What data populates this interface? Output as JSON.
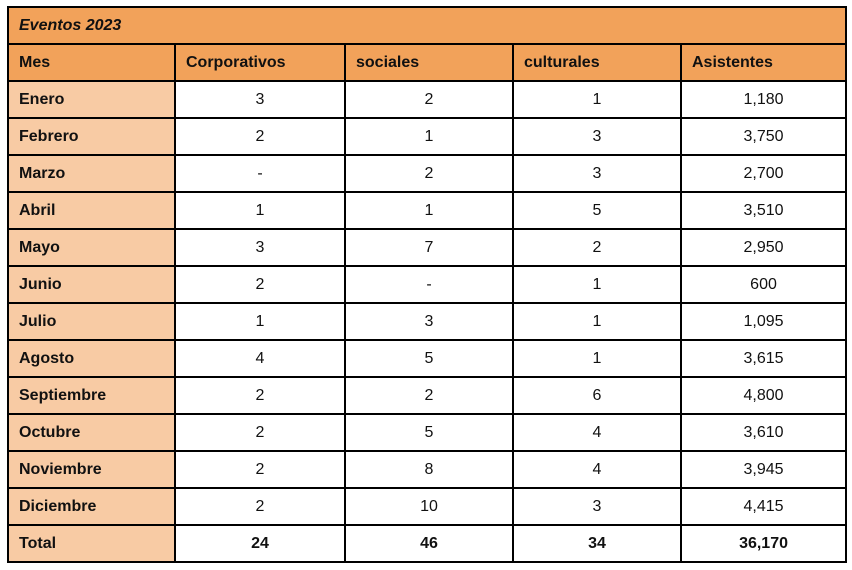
{
  "title": "Eventos 2023",
  "table": {
    "columns": [
      "Mes",
      "Corporativos",
      "sociales",
      "culturales",
      "Asistentes"
    ],
    "rows": [
      {
        "mes": "Enero",
        "values": [
          "3",
          "2",
          "1",
          "1,180"
        ]
      },
      {
        "mes": "Febrero",
        "values": [
          "2",
          "1",
          "3",
          "3,750"
        ]
      },
      {
        "mes": "Marzo",
        "values": [
          "-",
          "2",
          "3",
          "2,700"
        ]
      },
      {
        "mes": "Abril",
        "values": [
          "1",
          "1",
          "5",
          "3,510"
        ]
      },
      {
        "mes": "Mayo",
        "values": [
          "3",
          "7",
          "2",
          "2,950"
        ]
      },
      {
        "mes": "Junio",
        "values": [
          "2",
          "-",
          "1",
          "600"
        ]
      },
      {
        "mes": "Julio",
        "values": [
          "1",
          "3",
          "1",
          "1,095"
        ]
      },
      {
        "mes": "Agosto",
        "values": [
          "4",
          "5",
          "1",
          "3,615"
        ]
      },
      {
        "mes": "Septiembre",
        "values": [
          "2",
          "2",
          "6",
          "4,800"
        ]
      },
      {
        "mes": "Octubre",
        "values": [
          "2",
          "5",
          "4",
          "3,610"
        ]
      },
      {
        "mes": "Noviembre",
        "values": [
          "2",
          "8",
          "4",
          "3,945"
        ]
      },
      {
        "mes": "Diciembre",
        "values": [
          "2",
          "10",
          "3",
          "4,415"
        ]
      }
    ],
    "total": {
      "label": "Total",
      "values": [
        "24",
        "46",
        "34",
        "36,170"
      ]
    }
  },
  "colors": {
    "header_bg": "#F2A25A",
    "label_bg": "#F8CBA4",
    "border": "#000000",
    "text": "#111111"
  },
  "chart_data": {
    "type": "table",
    "title": "Eventos 2023",
    "columns": [
      "Mes",
      "Corporativos",
      "sociales",
      "culturales",
      "Asistentes"
    ],
    "rows": [
      [
        "Enero",
        3,
        2,
        1,
        1180
      ],
      [
        "Febrero",
        2,
        1,
        3,
        3750
      ],
      [
        "Marzo",
        null,
        2,
        3,
        2700
      ],
      [
        "Abril",
        1,
        1,
        5,
        3510
      ],
      [
        "Mayo",
        3,
        7,
        2,
        2950
      ],
      [
        "Junio",
        2,
        null,
        1,
        600
      ],
      [
        "Julio",
        1,
        3,
        1,
        1095
      ],
      [
        "Agosto",
        4,
        5,
        1,
        3615
      ],
      [
        "Septiembre",
        2,
        2,
        6,
        4800
      ],
      [
        "Octubre",
        2,
        5,
        4,
        3610
      ],
      [
        "Noviembre",
        2,
        8,
        4,
        3945
      ],
      [
        "Diciembre",
        2,
        10,
        3,
        4415
      ],
      [
        "Total",
        24,
        46,
        34,
        36170
      ]
    ]
  }
}
